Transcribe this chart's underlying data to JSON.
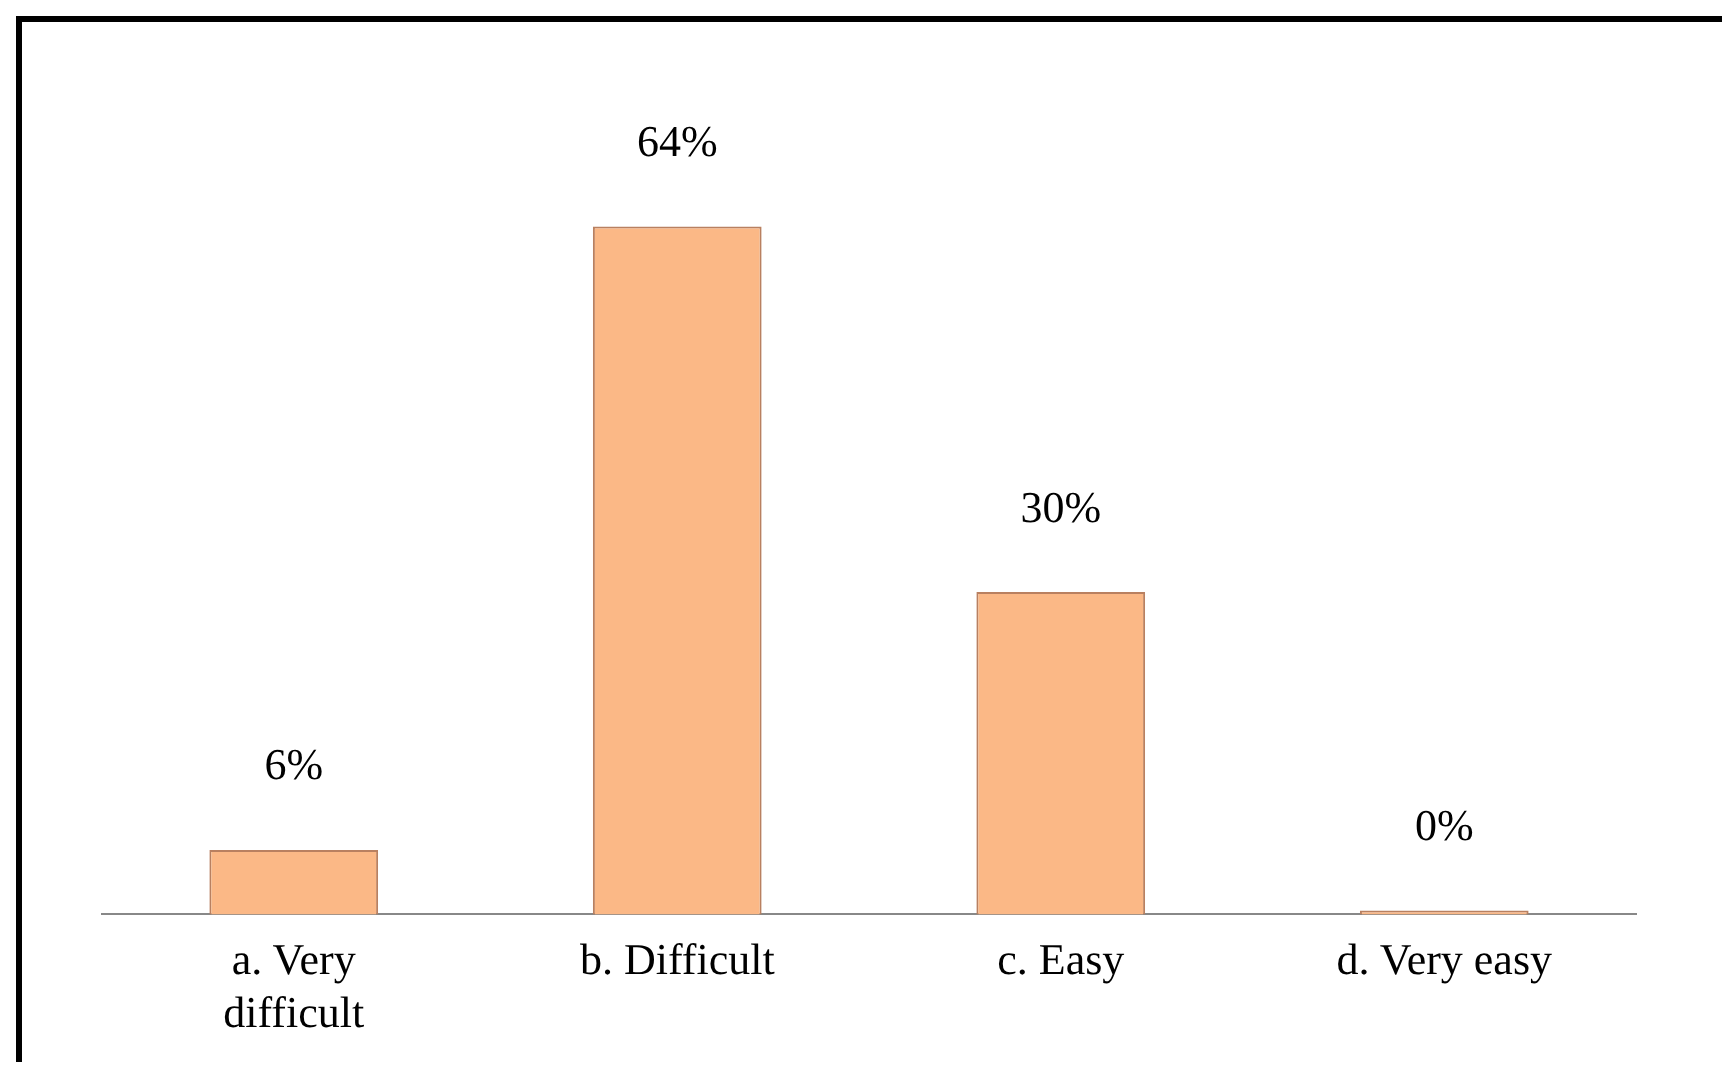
{
  "chart_data": {
    "type": "bar",
    "categories": [
      "a. Very difficult",
      "b. Difficult",
      "c. Easy",
      "d. Very easy"
    ],
    "values": [
      6,
      64,
      30,
      0
    ],
    "color": "#fbb886",
    "value_labels": [
      "6%",
      "64%",
      "30%",
      "0%"
    ],
    "grid": false,
    "legend": false
  }
}
